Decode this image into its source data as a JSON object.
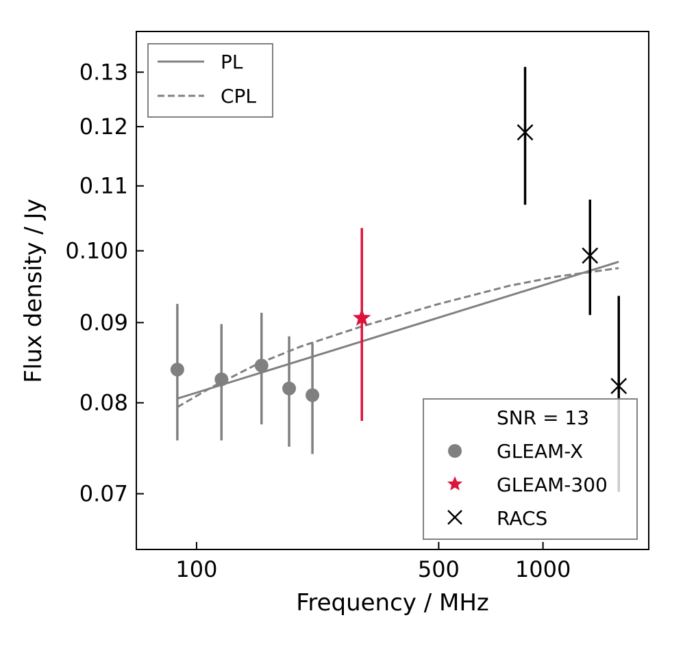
{
  "chart_data": {
    "type": "scatter",
    "xlabel": "Frequency / MHz",
    "ylabel": "Flux density / Jy",
    "x_scale": "log",
    "y_scale": "log",
    "xlim": [
      67,
      2020
    ],
    "ylim": [
      0.0645,
      0.138
    ],
    "x_ticks": [
      100,
      500,
      1000
    ],
    "x_tick_labels": [
      "100",
      "500",
      "1000"
    ],
    "y_ticks": [
      0.07,
      0.08,
      0.09,
      0.1,
      0.11,
      0.12,
      0.13
    ],
    "y_tick_labels": [
      "0.07",
      "0.08",
      "0.09",
      "0.100",
      "0.11",
      "0.12",
      "0.13"
    ],
    "series": [
      {
        "name": "GLEAM-X",
        "marker": "circle",
        "color": "#808080",
        "points": [
          {
            "x": 88,
            "y": 0.084,
            "yerr_low": 0.0757,
            "yerr_high": 0.0925
          },
          {
            "x": 118,
            "y": 0.0828,
            "yerr_low": 0.0757,
            "yerr_high": 0.0898
          },
          {
            "x": 154,
            "y": 0.0845,
            "yerr_low": 0.0775,
            "yerr_high": 0.0913
          },
          {
            "x": 185,
            "y": 0.0817,
            "yerr_low": 0.075,
            "yerr_high": 0.0882
          },
          {
            "x": 216,
            "y": 0.0809,
            "yerr_low": 0.0742,
            "yerr_high": 0.0873
          }
        ]
      },
      {
        "name": "GLEAM-300",
        "marker": "star",
        "color": "#dc143c",
        "points": [
          {
            "x": 300,
            "y": 0.0906,
            "yerr_low": 0.0779,
            "yerr_high": 0.1034
          }
        ]
      },
      {
        "name": "RACS",
        "marker": "x",
        "color": "#000000",
        "points": [
          {
            "x": 888,
            "y": 0.119,
            "yerr_low": 0.107,
            "yerr_high": 0.131
          },
          {
            "x": 1367,
            "y": 0.0993,
            "yerr_low": 0.091,
            "yerr_high": 0.1078
          },
          {
            "x": 1655,
            "y": 0.082,
            "yerr_low": 0.0702,
            "yerr_high": 0.0936
          }
        ]
      }
    ],
    "models": [
      {
        "name": "PL",
        "style": "solid",
        "color": "#808080",
        "x": [
          88,
          1655
        ],
        "y": [
          0.0805,
          0.0984
        ]
      },
      {
        "name": "CPL",
        "style": "dashed",
        "color": "#808080",
        "x": [
          88,
          110,
          150,
          200,
          300,
          500,
          800,
          1100,
          1400,
          1655
        ],
        "y": [
          0.0795,
          0.0818,
          0.0847,
          0.0869,
          0.0895,
          0.0925,
          0.095,
          0.0963,
          0.097,
          0.0975
        ]
      }
    ],
    "legend_models": {
      "position": "top-left",
      "entries": [
        "PL",
        "CPL"
      ]
    },
    "legend_data": {
      "position": "bottom-right",
      "title": "SNR = 13",
      "entries": [
        "GLEAM-X",
        "GLEAM-300",
        "RACS"
      ]
    }
  }
}
